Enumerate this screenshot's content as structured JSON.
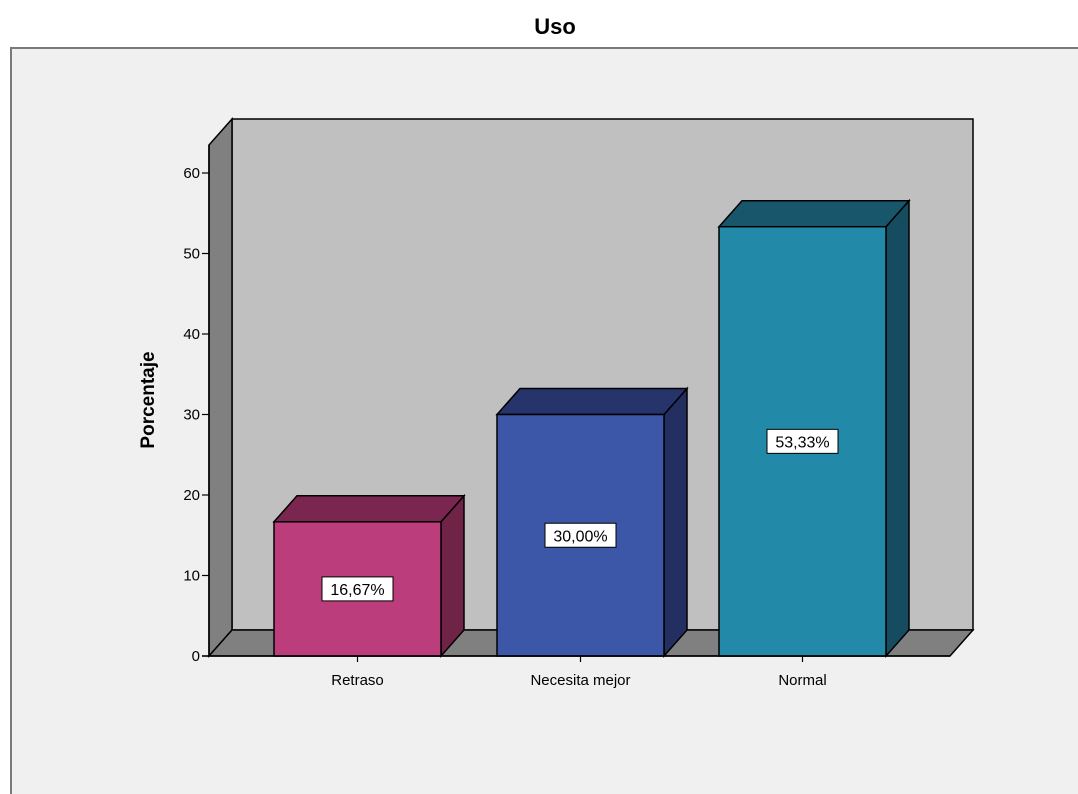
{
  "chart_data": {
    "type": "bar",
    "title": "Uso",
    "ylabel": "Porcentaje",
    "xlabel": "",
    "categories": [
      "Retraso",
      "Necesita mejor",
      "Normal"
    ],
    "values": [
      16.67,
      30.0,
      53.33
    ],
    "value_labels": [
      "16,67%",
      "30,00%",
      "53,33%"
    ],
    "ylim": [
      0,
      60
    ],
    "yticks": [
      0,
      10,
      20,
      30,
      40,
      50,
      60
    ],
    "grid": false,
    "legend": "none",
    "style": "3d",
    "colors": {
      "bars_front": [
        "#bb3d7b",
        "#3c56a8",
        "#2389a8"
      ],
      "bars_top": [
        "#7b2650",
        "#26346b",
        "#17566b"
      ],
      "bars_side": [
        "#6f2347",
        "#232f60",
        "#154c60"
      ],
      "back_wall": "#c0c0c0",
      "side_wall": "#808080",
      "floor": "#808080",
      "frame_bg": "#f0f0f0"
    }
  }
}
